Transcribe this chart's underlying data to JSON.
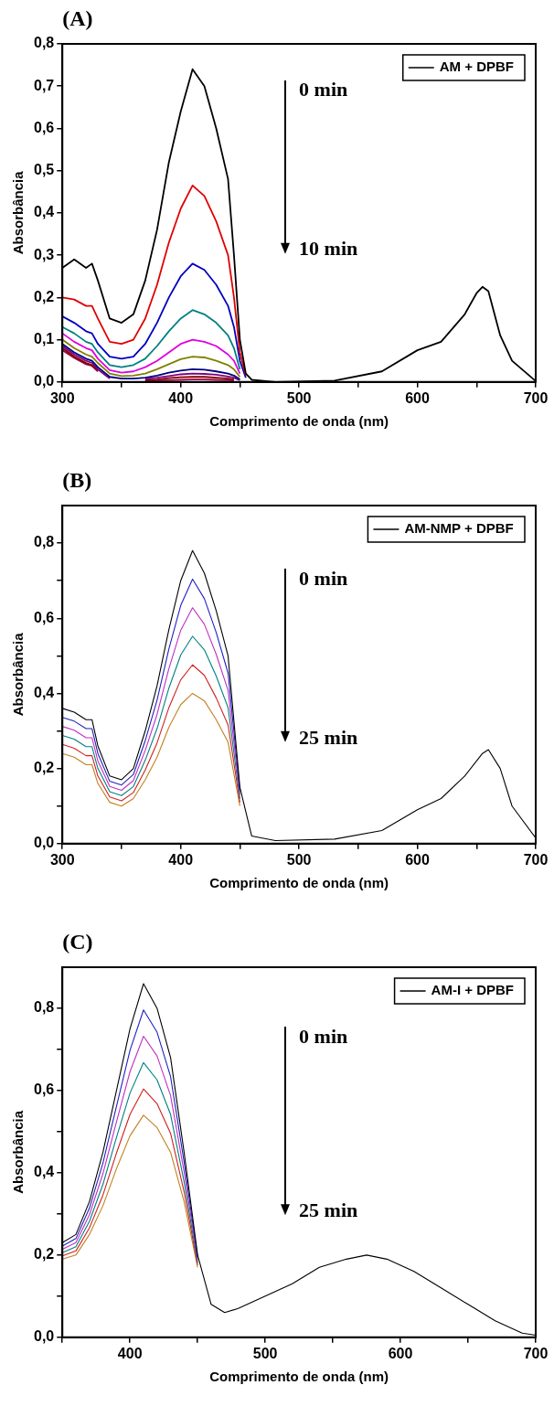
{
  "chart_data": [
    {
      "type": "line",
      "title": "(A)",
      "xlabel": "Comprimento de onda (nm)",
      "ylabel": "Absorbância",
      "legend": "top right",
      "marker": "none",
      "annotations": [
        "0 min",
        "10 min"
      ],
      "x": [
        300,
        310,
        320,
        325,
        330,
        340,
        350,
        360,
        370,
        380,
        390,
        400,
        410,
        420,
        430,
        440,
        445,
        450,
        455,
        460,
        480,
        530,
        570,
        600,
        620,
        640,
        650,
        655,
        660,
        670,
        680,
        700
      ],
      "xlim": [
        300,
        700
      ],
      "xticks": [
        300,
        {
          "value": 350,
          "label": null
        },
        400,
        {
          "value": 450,
          "label": null
        },
        500,
        {
          "value": 550,
          "label": null
        },
        600,
        {
          "value": 650,
          "label": null
        },
        700
      ],
      "ylim": [
        0,
        0.8
      ],
      "yticks": [
        {
          "value": 0,
          "label": "0,0"
        },
        {
          "value": 0.1,
          "label": "0,1"
        },
        {
          "value": 0.2,
          "label": "0,2"
        },
        {
          "value": 0.3,
          "label": "0,3"
        },
        {
          "value": 0.4,
          "label": "0,4"
        },
        {
          "value": 0.5,
          "label": "0,5"
        },
        {
          "value": 0.6,
          "label": "0,6"
        },
        {
          "value": 0.7,
          "label": "0,7"
        },
        {
          "value": 0.8,
          "label": "0,8"
        }
      ],
      "series": [
        {
          "name": "AM + DPBF",
          "color": "#000000",
          "values": [
            0.27,
            0.29,
            0.27,
            0.28,
            0.24,
            0.15,
            0.14,
            0.16,
            0.24,
            0.36,
            0.52,
            0.64,
            0.74,
            0.7,
            0.6,
            0.48,
            0.3,
            0.1,
            0.02,
            0.005,
            0,
            0.003,
            0.025,
            0.075,
            0.095,
            0.16,
            0.21,
            0.225,
            0.215,
            0.11,
            0.05,
            0.002
          ]
        },
        {
          "color": "#e00000",
          "values": [
            0.2,
            0.195,
            0.18,
            0.18,
            0.15,
            0.095,
            0.09,
            0.1,
            0.15,
            0.23,
            0.33,
            0.41,
            0.465,
            0.44,
            0.38,
            0.3,
            0.2,
            0.07,
            0.015,
            null,
            null,
            null,
            null,
            null,
            null,
            null,
            null,
            null,
            null,
            null,
            null,
            null
          ]
        },
        {
          "color": "#0000c0",
          "values": [
            0.155,
            0.14,
            0.12,
            0.115,
            0.09,
            0.06,
            0.055,
            0.06,
            0.09,
            0.14,
            0.2,
            0.25,
            0.28,
            0.265,
            0.23,
            0.18,
            0.13,
            0.05,
            0.01,
            null,
            null,
            null,
            null,
            null,
            null,
            null,
            null,
            null,
            null,
            null,
            null,
            null
          ]
        },
        {
          "color": "#008080",
          "values": [
            0.13,
            0.115,
            0.095,
            0.09,
            0.07,
            0.04,
            0.035,
            0.04,
            0.055,
            0.085,
            0.12,
            0.15,
            0.17,
            0.16,
            0.14,
            0.11,
            0.08,
            0.03,
            null,
            null,
            null,
            null,
            null,
            null,
            null,
            null,
            null,
            null,
            null,
            null,
            null,
            null
          ]
        },
        {
          "color": "#e000e0",
          "values": [
            0.115,
            0.095,
            0.08,
            0.075,
            0.055,
            0.028,
            0.022,
            0.025,
            0.035,
            0.05,
            0.07,
            0.09,
            0.1,
            0.095,
            0.085,
            0.065,
            0.05,
            0.02,
            null,
            null,
            null,
            null,
            null,
            null,
            null,
            null,
            null,
            null,
            null,
            null,
            null,
            null
          ]
        },
        {
          "color": "#808000",
          "values": [
            0.1,
            0.08,
            0.065,
            0.06,
            0.045,
            0.02,
            0.014,
            0.015,
            0.02,
            0.03,
            0.042,
            0.054,
            0.06,
            0.058,
            0.05,
            0.04,
            0.03,
            0.012,
            null,
            null,
            null,
            null,
            null,
            null,
            null,
            null,
            null,
            null,
            null,
            null,
            null,
            null
          ]
        },
        {
          "color": "#000080",
          "values": [
            0.09,
            0.07,
            0.055,
            0.05,
            0.035,
            0.012,
            0.008,
            0.008,
            0.01,
            0.015,
            0.022,
            0.027,
            0.03,
            0.029,
            0.025,
            0.02,
            0.015,
            0.006,
            null,
            null,
            null,
            null,
            null,
            null,
            null,
            null,
            null,
            null,
            null,
            null,
            null,
            null
          ]
        },
        {
          "color": "#800080",
          "values": [
            0.085,
            0.065,
            0.05,
            0.045,
            0.03,
            0.008,
            null,
            null,
            0.007,
            0.01,
            0.014,
            0.018,
            0.02,
            0.019,
            0.017,
            0.013,
            0.01,
            0.004,
            null,
            null,
            null,
            null,
            null,
            null,
            null,
            null,
            null,
            null,
            null,
            null,
            null,
            null
          ]
        },
        {
          "color": "#800000",
          "values": [
            0.08,
            0.06,
            0.045,
            0.04,
            0.028,
            null,
            null,
            null,
            0.004,
            0.006,
            0.009,
            0.011,
            0.012,
            0.012,
            0.01,
            0.008,
            0.006,
            null,
            null,
            null,
            null,
            null,
            null,
            null,
            null,
            null,
            null,
            null,
            null,
            null,
            null,
            null
          ]
        },
        {
          "color": "#a00040",
          "values": [
            0.075,
            0.057,
            0.042,
            0.038,
            0.025,
            null,
            null,
            null,
            0.002,
            0.003,
            0.004,
            0.005,
            0.006,
            0.006,
            0.005,
            0.004,
            0.003,
            null,
            null,
            null,
            null,
            null,
            null,
            null,
            null,
            null,
            null,
            null,
            null,
            null,
            null,
            null
          ]
        }
      ]
    },
    {
      "type": "line",
      "title": "(B)",
      "xlabel": "Comprimento de onda (nm)",
      "ylabel": "Absorbância",
      "legend": "top right",
      "marker": "none",
      "annotations": [
        "0 min",
        "25 min"
      ],
      "x": [
        300,
        310,
        320,
        325,
        330,
        340,
        350,
        360,
        370,
        380,
        390,
        400,
        410,
        420,
        430,
        440,
        450,
        460,
        480,
        530,
        570,
        600,
        620,
        640,
        655,
        660,
        670,
        680,
        700
      ],
      "xlim": [
        300,
        700
      ],
      "xticks": [
        300,
        {
          "value": 350,
          "label": null
        },
        400,
        {
          "value": 450,
          "label": null
        },
        500,
        {
          "value": 550,
          "label": null
        },
        600,
        {
          "value": 650,
          "label": null
        },
        700
      ],
      "ylim": [
        0,
        0.9
      ],
      "yticks": [
        {
          "value": 0,
          "label": "0,0"
        },
        {
          "value": 0.1,
          "label": null
        },
        {
          "value": 0.2,
          "label": "0,2"
        },
        {
          "value": 0.3,
          "label": null
        },
        {
          "value": 0.4,
          "label": "0,4"
        },
        {
          "value": 0.5,
          "label": null
        },
        {
          "value": 0.6,
          "label": "0,6"
        },
        {
          "value": 0.7,
          "label": null
        },
        {
          "value": 0.8,
          "label": "0,8"
        }
      ],
      "series": [
        {
          "name": "AM-NMP + DPBF",
          "color": "#000000",
          "values": [
            0.36,
            0.35,
            0.33,
            0.33,
            0.26,
            0.18,
            0.17,
            0.2,
            0.3,
            0.42,
            0.57,
            0.7,
            0.78,
            0.72,
            0.62,
            0.5,
            0.15,
            0.02,
            0.008,
            0.012,
            0.035,
            0.09,
            0.12,
            0.18,
            0.24,
            0.25,
            0.2,
            0.1,
            0.015
          ]
        },
        {
          "color": "#2020c0",
          "values": [
            0.336,
            0.326,
            0.306,
            0.306,
            0.24,
            0.166,
            0.156,
            0.184,
            0.274,
            0.382,
            0.518,
            0.634,
            0.704,
            0.652,
            0.562,
            0.454,
            0.14,
            null,
            null,
            null,
            null,
            null,
            null,
            null,
            null,
            null,
            null,
            null,
            null
          ]
        },
        {
          "color": "#c030c0",
          "values": [
            0.312,
            0.302,
            0.282,
            0.282,
            0.22,
            0.152,
            0.142,
            0.168,
            0.248,
            0.344,
            0.466,
            0.568,
            0.628,
            0.584,
            0.504,
            0.408,
            0.13,
            null,
            null,
            null,
            null,
            null,
            null,
            null,
            null,
            null,
            null,
            null,
            null
          ]
        },
        {
          "color": "#008080",
          "values": [
            0.288,
            0.278,
            0.258,
            0.258,
            0.2,
            0.138,
            0.128,
            0.152,
            0.222,
            0.306,
            0.414,
            0.502,
            0.552,
            0.516,
            0.446,
            0.362,
            0.12,
            null,
            null,
            null,
            null,
            null,
            null,
            null,
            null,
            null,
            null,
            null,
            null
          ]
        },
        {
          "color": "#d02020",
          "values": [
            0.264,
            0.254,
            0.234,
            0.234,
            0.18,
            0.124,
            0.114,
            0.136,
            0.196,
            0.268,
            0.362,
            0.436,
            0.476,
            0.448,
            0.388,
            0.316,
            0.11,
            null,
            null,
            null,
            null,
            null,
            null,
            null,
            null,
            null,
            null,
            null,
            null
          ]
        },
        {
          "color": "#c08020",
          "values": [
            0.24,
            0.23,
            0.21,
            0.21,
            0.16,
            0.11,
            0.1,
            0.12,
            0.17,
            0.23,
            0.31,
            0.37,
            0.4,
            0.38,
            0.33,
            0.27,
            0.1,
            null,
            null,
            null,
            null,
            null,
            null,
            null,
            null,
            null,
            null,
            null,
            null
          ]
        }
      ]
    },
    {
      "type": "line",
      "title": "(C)",
      "xlabel": "Comprimento de onda (nm)",
      "ylabel": "Absorbância",
      "legend": "top right",
      "marker": "none",
      "annotations": [
        "0 min",
        "25 min"
      ],
      "x": [
        350,
        360,
        370,
        380,
        390,
        400,
        410,
        420,
        430,
        440,
        450,
        460,
        470,
        480,
        500,
        520,
        540,
        560,
        575,
        590,
        610,
        630,
        650,
        670,
        690,
        700
      ],
      "xlim": [
        350,
        700
      ],
      "xticks": [
        {
          "value": 350,
          "label": null
        },
        400,
        {
          "value": 450,
          "label": null
        },
        500,
        {
          "value": 550,
          "label": null
        },
        600,
        {
          "value": 650,
          "label": null
        },
        700
      ],
      "ylim": [
        0,
        0.9
      ],
      "yticks": [
        {
          "value": 0,
          "label": "0,0"
        },
        {
          "value": 0.1,
          "label": null
        },
        {
          "value": 0.2,
          "label": "0,2"
        },
        {
          "value": 0.3,
          "label": null
        },
        {
          "value": 0.4,
          "label": "0,4"
        },
        {
          "value": 0.5,
          "label": null
        },
        {
          "value": 0.6,
          "label": "0,6"
        },
        {
          "value": 0.7,
          "label": null
        },
        {
          "value": 0.8,
          "label": "0,8"
        }
      ],
      "series": [
        {
          "name": "AM-I + DPBF",
          "color": "#000000",
          "values": [
            0.23,
            0.25,
            0.33,
            0.45,
            0.6,
            0.75,
            0.86,
            0.8,
            0.68,
            0.45,
            0.2,
            0.08,
            0.06,
            0.07,
            0.1,
            0.13,
            0.17,
            0.19,
            0.2,
            0.19,
            0.16,
            0.12,
            0.08,
            0.04,
            0.01,
            0.005
          ]
        },
        {
          "color": "#2020c0",
          "values": [
            0.222,
            0.24,
            0.314,
            0.424,
            0.562,
            0.698,
            0.796,
            0.742,
            0.634,
            0.426,
            0.194,
            null,
            null,
            null,
            null,
            null,
            null,
            null,
            null,
            null,
            null,
            null,
            null,
            null,
            null,
            null
          ]
        },
        {
          "color": "#c030c0",
          "values": [
            0.214,
            0.23,
            0.298,
            0.398,
            0.524,
            0.646,
            0.732,
            0.684,
            0.588,
            0.402,
            0.188,
            null,
            null,
            null,
            null,
            null,
            null,
            null,
            null,
            null,
            null,
            null,
            null,
            null,
            null,
            null
          ]
        },
        {
          "color": "#008080",
          "values": [
            0.206,
            0.22,
            0.282,
            0.372,
            0.486,
            0.594,
            0.668,
            0.626,
            0.542,
            0.378,
            0.182,
            null,
            null,
            null,
            null,
            null,
            null,
            null,
            null,
            null,
            null,
            null,
            null,
            null,
            null,
            null
          ]
        },
        {
          "color": "#d02020",
          "values": [
            0.198,
            0.21,
            0.266,
            0.346,
            0.448,
            0.542,
            0.604,
            0.568,
            0.496,
            0.354,
            0.176,
            null,
            null,
            null,
            null,
            null,
            null,
            null,
            null,
            null,
            null,
            null,
            null,
            null,
            null,
            null
          ]
        },
        {
          "color": "#c08020",
          "values": [
            0.19,
            0.2,
            0.25,
            0.32,
            0.41,
            0.49,
            0.54,
            0.51,
            0.45,
            0.33,
            0.17,
            null,
            null,
            null,
            null,
            null,
            null,
            null,
            null,
            null,
            null,
            null,
            null,
            null,
            null,
            null
          ]
        }
      ]
    }
  ]
}
